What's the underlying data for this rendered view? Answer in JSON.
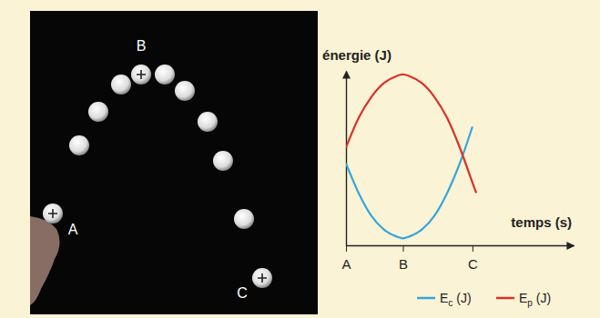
{
  "chart_data": {
    "type": "line",
    "x_label": "temps (s)",
    "y_label": "énergie (J)",
    "x": [
      0,
      1,
      2,
      3,
      4,
      4.5,
      5,
      6,
      7,
      8,
      9,
      10,
      10.3
    ],
    "xlim": [
      0,
      18
    ],
    "xticks": [
      {
        "value": 0,
        "label": "A"
      },
      {
        "value": 4.5,
        "label": "B"
      },
      {
        "value": 10,
        "label": "C"
      }
    ],
    "ylim": [
      0,
      10
    ],
    "yticks": [],
    "tick_labels": "x",
    "grid": false,
    "legend": "lower right",
    "series": [
      {
        "name": "Ec (J)",
        "color": "#35a6dc",
        "values": [
          4.7,
          3.0,
          1.7,
          0.9,
          0.5,
          0.4,
          0.5,
          0.9,
          1.7,
          3.0,
          4.7,
          6.8,
          null
        ]
      },
      {
        "name": "Ep (J)",
        "color": "#d93127",
        "values": [
          5.6,
          7.3,
          8.5,
          9.3,
          9.7,
          9.8,
          9.7,
          9.3,
          8.5,
          7.3,
          5.6,
          3.6,
          3.0
        ]
      }
    ]
  },
  "photo": {
    "labels": [
      "A",
      "B",
      "C"
    ]
  }
}
